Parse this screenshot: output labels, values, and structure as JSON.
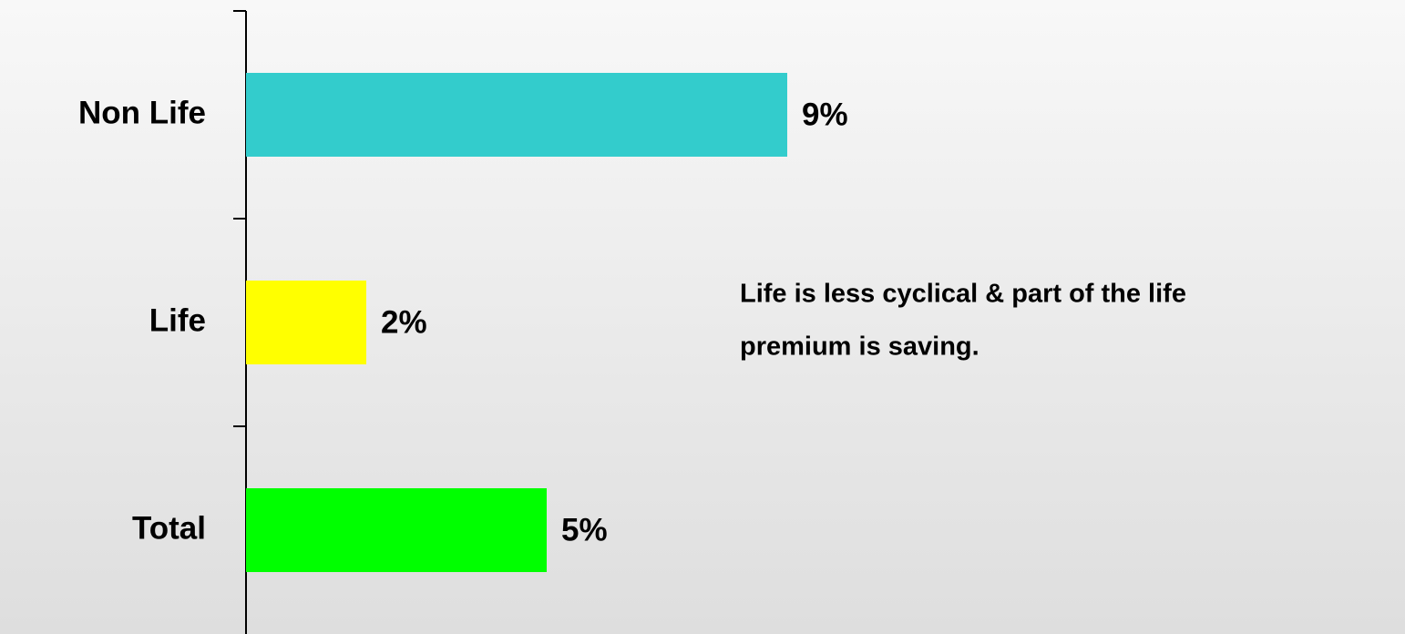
{
  "chart_data": {
    "type": "barh",
    "categories": [
      "Non Life",
      "Life",
      "Total"
    ],
    "values": [
      9,
      2,
      5
    ],
    "value_labels": [
      "9%",
      "2%",
      "5%"
    ],
    "colors": [
      "#33cccc",
      "#ffff00",
      "#00ff00"
    ],
    "annotation": [
      "Life is less cyclical & part of the life",
      "premium is saving."
    ]
  }
}
